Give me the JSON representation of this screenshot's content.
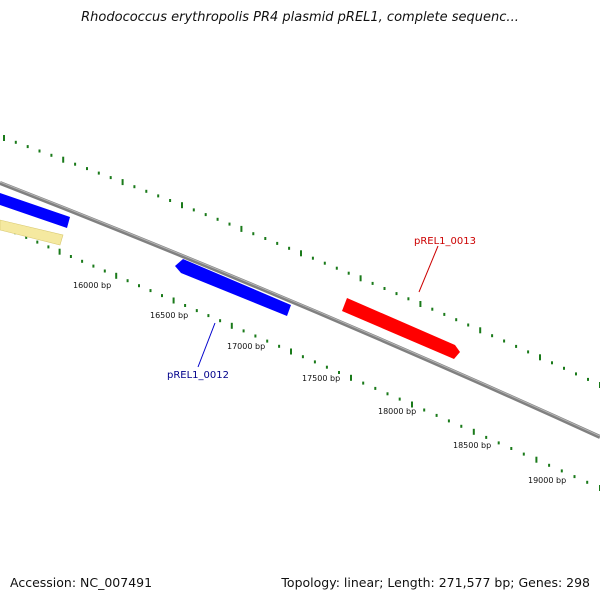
{
  "header": {
    "title": "Rhodococcus erythropolis PR4 plasmid pREL1, complete sequenc..."
  },
  "footer": {
    "accession": "Accession: NC_007491",
    "summary": "Topology: linear; Length: 271,577 bp; Genes: 298"
  },
  "ruler": {
    "labels": [
      "16000 bp",
      "16500 bp",
      "17000 bp",
      "17500 bp",
      "18000 bp",
      "18500 bp",
      "19000 bp"
    ]
  },
  "genes": [
    {
      "label": "pREL1_0012",
      "color": "#0000ff",
      "strand": "reverse"
    },
    {
      "label": "pREL1_0013",
      "color": "#ff0000",
      "strand": "forward"
    }
  ],
  "colors": {
    "backbone": "#808080",
    "ticks": "#1a7a1a",
    "forward_gene_partial": "#0000ff",
    "reverse_gene_partial": "#f5e9a0"
  }
}
